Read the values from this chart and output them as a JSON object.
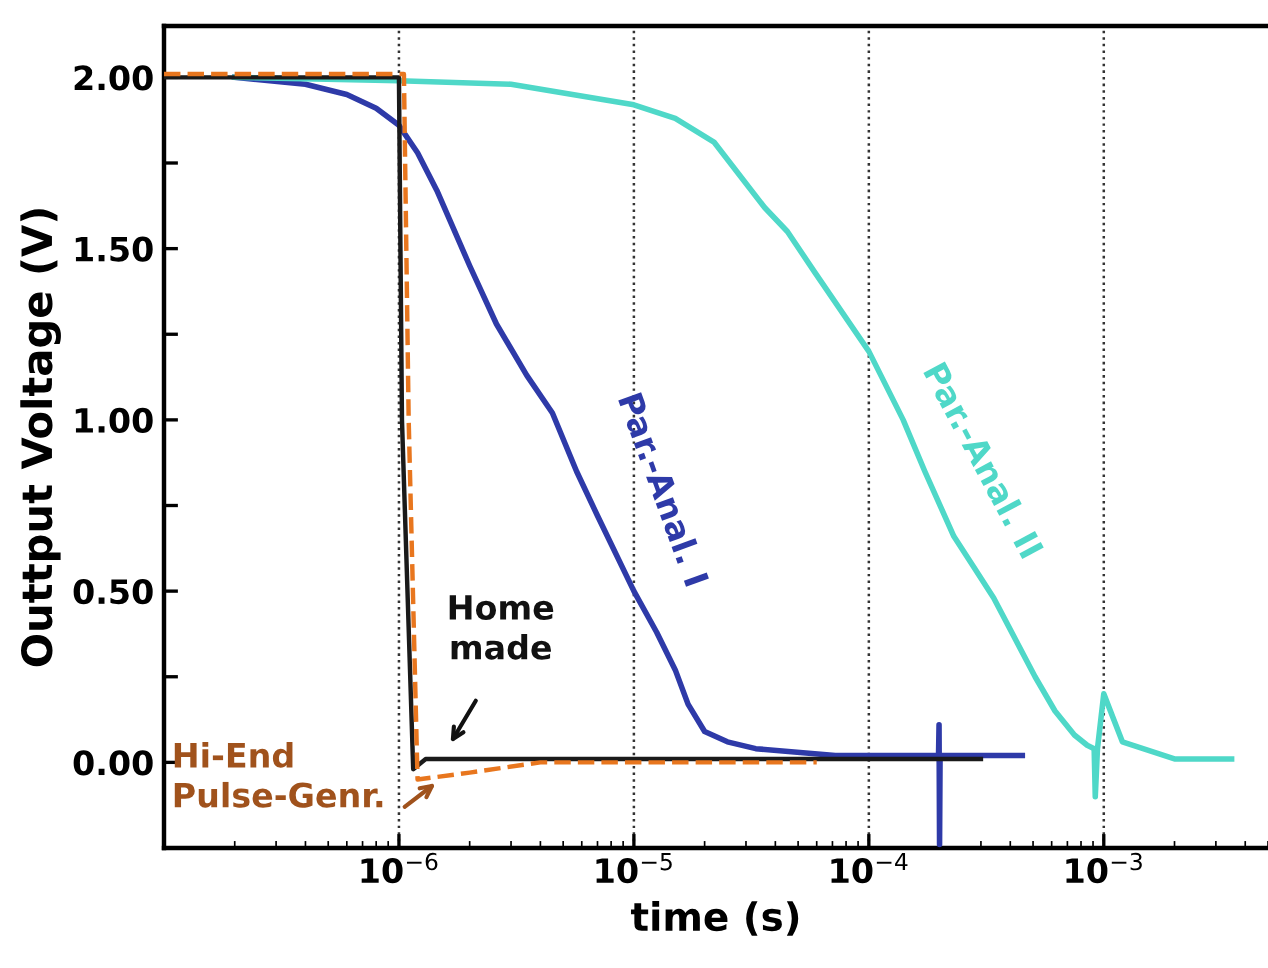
{
  "chart_data": {
    "type": "line",
    "xlabel": "time (s)",
    "ylabel": "Outtput Voltage (V)",
    "log": "x",
    "grid": "x",
    "legend": false,
    "xlim": [
      1e-07,
      0.005
    ],
    "xticks": [
      {
        "value": 1e-06,
        "label": "10$^{−6}$"
      },
      {
        "value": 1e-05,
        "label": "10$^{−5}$"
      },
      {
        "value": 0.0001,
        "label": "10$^{−4}$"
      },
      {
        "value": 0.001,
        "label": "10$^{−3}$"
      }
    ],
    "ylim": [
      -0.25,
      2.15
    ],
    "yticks": [
      {
        "value": 0,
        "label": "0.00"
      },
      {
        "value": 0.25,
        "label": null
      },
      {
        "value": 0.5,
        "label": "0.50"
      },
      {
        "value": 0.75,
        "label": null
      },
      {
        "value": 1.0,
        "label": "1.00"
      },
      {
        "value": 1.25,
        "label": null
      },
      {
        "value": 1.5,
        "label": "1.50"
      },
      {
        "value": 1.75,
        "label": null
      },
      {
        "value": 2.0,
        "label": "2.00"
      }
    ],
    "series": [
      {
        "name": "Par.-Anal. I",
        "color": "#2e3aa8",
        "x": [
          2e-07,
          4e-07,
          6e-07,
          8e-07,
          1e-06,
          1.2e-06,
          1.45e-06,
          2e-06,
          2.6e-06,
          3.5e-06,
          4.5e-06,
          5.7e-06,
          7e-06,
          1e-05,
          1.25e-05,
          1.5e-05,
          1.7e-05,
          2e-05,
          2.5e-05,
          3.3e-05,
          7.2e-05,
          0.000198,
          0.000199,
          0.0002,
          0.000201,
          0.00045
        ],
        "values": [
          2.0,
          1.98,
          1.95,
          1.91,
          1.86,
          1.78,
          1.67,
          1.45,
          1.28,
          1.13,
          1.02,
          0.85,
          0.72,
          0.5,
          0.38,
          0.27,
          0.17,
          0.09,
          0.06,
          0.04,
          0.02,
          0.02,
          0.11,
          -0.24,
          0.02,
          0.02
        ]
      },
      {
        "name": "Par.-Anal. II",
        "color": "#4fd8c8",
        "x": [
          2e-07,
          1e-06,
          3e-06,
          1e-05,
          1.5e-05,
          2.2e-05,
          3.6e-05,
          4.5e-05,
          5.9e-05,
          0.0001,
          0.00014,
          0.000173,
          0.00023,
          0.00028,
          0.00034,
          0.00051,
          0.00062,
          0.00075,
          0.00085,
          0.00091,
          0.00092,
          0.00094,
          0.001,
          0.0012,
          0.002,
          0.0035
        ],
        "values": [
          2.0,
          1.99,
          1.98,
          1.92,
          1.88,
          1.81,
          1.62,
          1.55,
          1.43,
          1.2,
          1.0,
          0.85,
          0.66,
          0.57,
          0.48,
          0.25,
          0.15,
          0.08,
          0.05,
          0.04,
          -0.1,
          0.04,
          0.2,
          0.06,
          0.01,
          0.01
        ]
      },
      {
        "name": "Home\nmade",
        "color": "#1a1a1a",
        "x": [
          1e-07,
          1e-06,
          1.03e-06,
          1.15e-06,
          1.3e-06,
          3e-06,
          0.0003
        ],
        "values": [
          2.0,
          2.0,
          1.0,
          -0.02,
          0.01,
          0.01,
          0.01
        ],
        "line_style": "solid"
      },
      {
        "name": "Hi-End\nPulse-Genr.",
        "color": "#e8761e",
        "x": [
          1e-07,
          1.05e-06,
          1.1e-06,
          1.2e-06,
          2e-06,
          4e-06,
          6e-05
        ],
        "values": [
          2.01,
          2.01,
          1.0,
          -0.05,
          -0.03,
          0.0,
          0.0
        ],
        "line_style": "dashed"
      }
    ]
  }
}
